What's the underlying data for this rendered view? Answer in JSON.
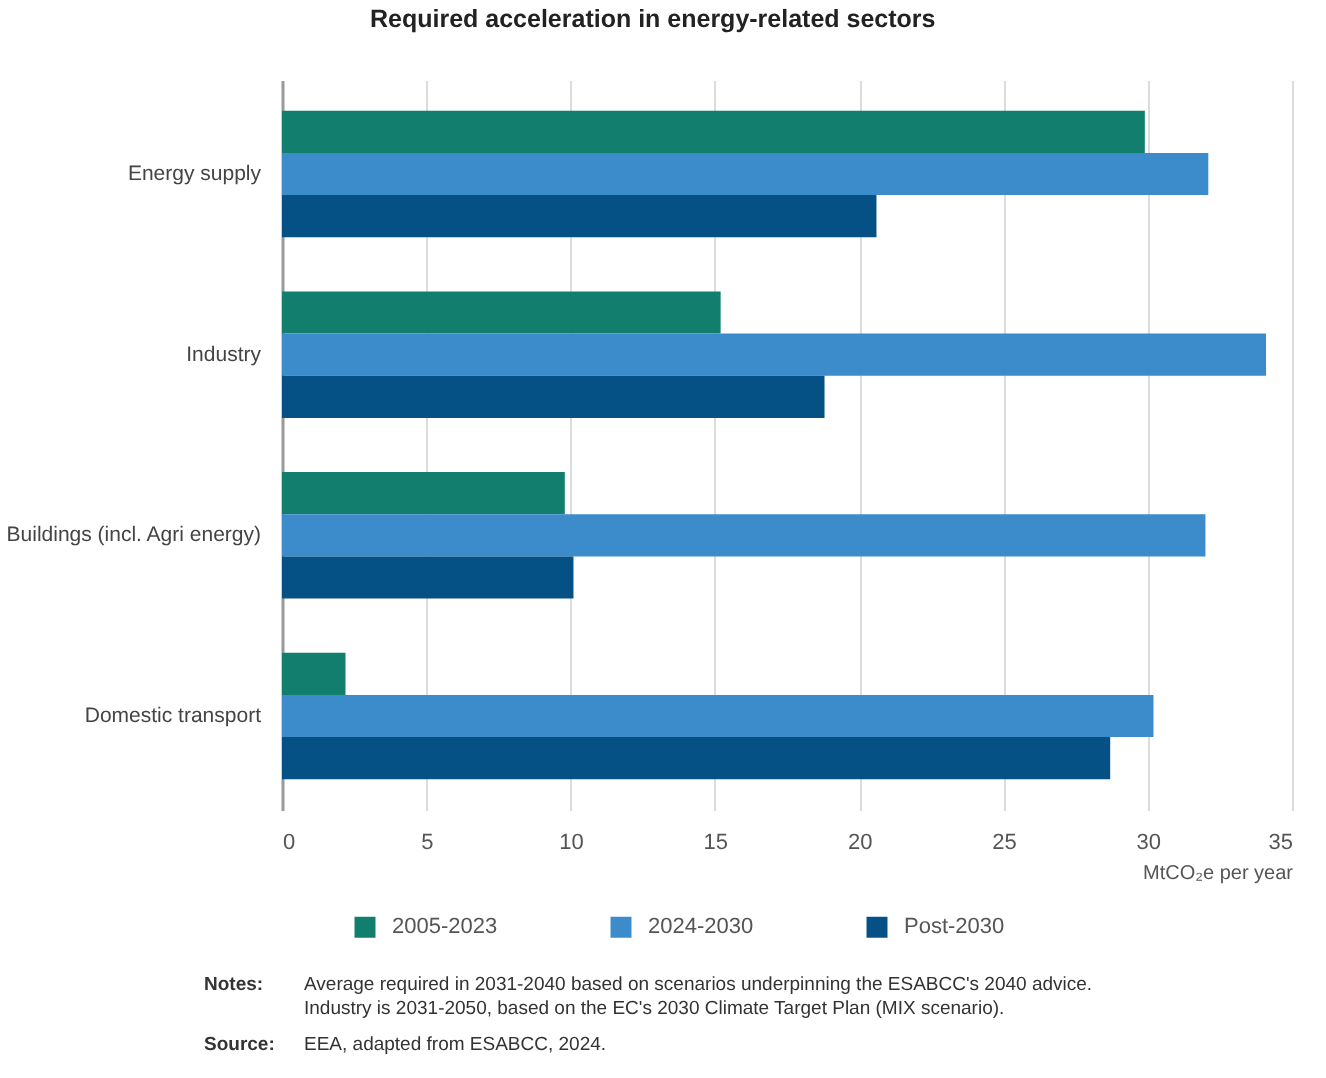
{
  "chart_data": {
    "type": "bar",
    "orientation": "horizontal",
    "title": "Required acceleration in energy-related sectors",
    "xlabel": "MtCO₂e per year",
    "categories": [
      "Energy supply",
      "Industry",
      "Buildings (incl. Agri energy)",
      "Domestic transport"
    ],
    "series": [
      {
        "name": "2005-2023",
        "color": "#117e6e",
        "values": [
          29.9,
          15.2,
          9.8,
          2.2
        ]
      },
      {
        "name": "2024-2030",
        "color": "#3c8ccb",
        "values": [
          32.1,
          34.1,
          32.0,
          30.2
        ]
      },
      {
        "name": "Post-2030",
        "color": "#055186",
        "values": [
          20.6,
          18.8,
          10.1,
          28.7
        ]
      }
    ],
    "xlim": [
      0,
      35
    ],
    "xticks": [
      0,
      5,
      10,
      15,
      20,
      25,
      30,
      35
    ],
    "grid": "x",
    "legend": "bottom",
    "annotations": [
      "Notes:",
      "Average required in 2031-2040 based on scenarios underpinning the ESABCC's 2040 advice. Industry is 2031-2050, based on the EC's 2030 Climate Target Plan (MIX scenario).",
      "Source:",
      "EEA, adapted from ESABCC, 2024."
    ]
  }
}
